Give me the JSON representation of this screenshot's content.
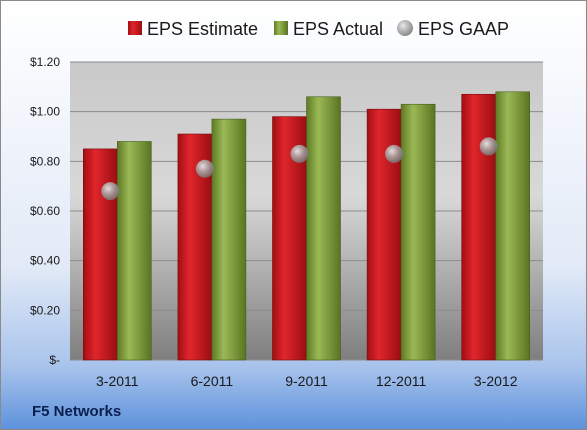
{
  "company": "F5 Networks",
  "colors": {
    "estimate": "#c0151b",
    "actual": "#7d9a3a",
    "gaap": "#9aa0a6"
  },
  "chart_data": {
    "type": "bar",
    "title": "",
    "xlabel": "",
    "ylabel": "",
    "categories": [
      "3-2011",
      "6-2011",
      "9-2011",
      "12-2011",
      "3-2012"
    ],
    "ylim": [
      0,
      1.2
    ],
    "yticks": [
      0,
      0.2,
      0.4,
      0.6,
      0.8,
      1.0,
      1.2
    ],
    "ytick_labels": [
      "$-",
      "$0.20",
      "$0.40",
      "$0.60",
      "$0.80",
      "$1.00",
      "$1.20"
    ],
    "grid": true,
    "legend_position": "top",
    "series": [
      {
        "name": "EPS Estimate",
        "type": "bar",
        "values": [
          0.85,
          0.91,
          0.98,
          1.01,
          1.07
        ]
      },
      {
        "name": "EPS Actual",
        "type": "bar",
        "values": [
          0.88,
          0.97,
          1.06,
          1.03,
          1.08
        ]
      },
      {
        "name": "EPS GAAP",
        "type": "scatter",
        "values": [
          0.68,
          0.77,
          0.83,
          0.83,
          0.86
        ]
      }
    ]
  }
}
